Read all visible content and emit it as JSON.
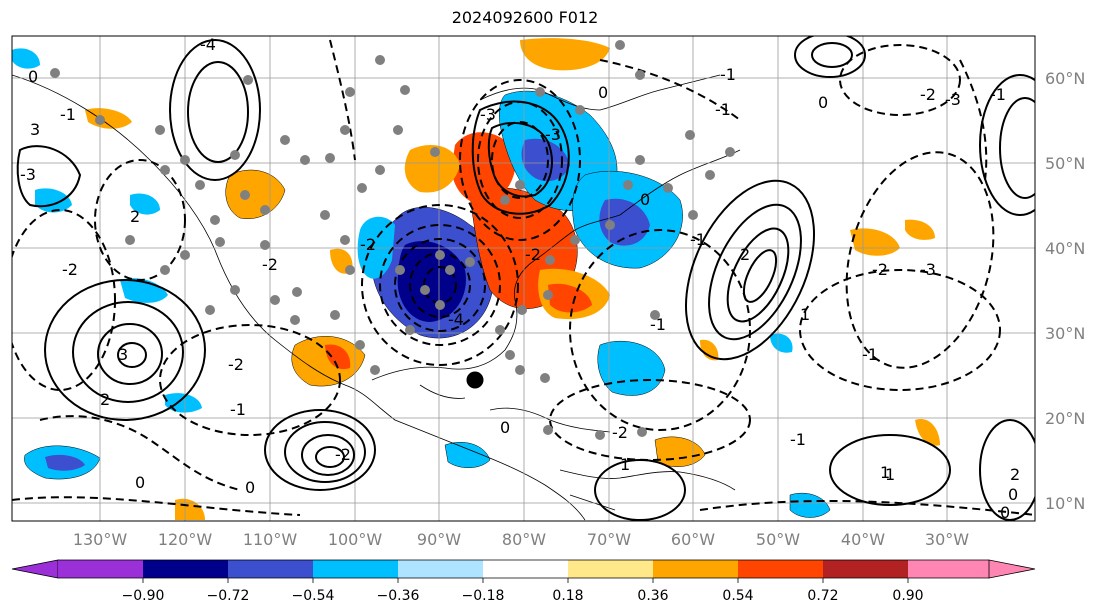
{
  "title": "2024092600 F012",
  "longitude_labels": [
    "130°W",
    "120°W",
    "110°W",
    "100°W",
    "90°W",
    "80°W",
    "70°W",
    "60°W",
    "50°W",
    "40°W",
    "30°W"
  ],
  "latitude_labels": [
    "60°N",
    "50°N",
    "40°N",
    "30°N",
    "20°N",
    "10°N"
  ],
  "colorbar": {
    "tick_labels": [
      "−0.90",
      "−0.72",
      "−0.54",
      "−0.36",
      "−0.18",
      "0.18",
      "0.36",
      "0.54",
      "0.72",
      "0.90"
    ],
    "colors": [
      "#9b30d9",
      "#00008b",
      "#3b4fcf",
      "#00bfff",
      "#aee4ff",
      "#ffffff",
      "#ffe88a",
      "#ffa500",
      "#ff4500",
      "#b22222",
      "#ff85b3"
    ]
  },
  "contour_labels": [
    "0",
    "-2",
    "3",
    "-1",
    "-2",
    "2",
    "0",
    "-4",
    "-3",
    "3",
    "2",
    "-1",
    "-3",
    "0",
    "-2",
    "-1",
    "1",
    "-1",
    "-1",
    "0",
    "-2",
    "-2",
    "-3",
    "-4",
    "0",
    "-2",
    "-3",
    "0",
    "1",
    "1",
    "1",
    "-3",
    "2",
    "0",
    "-1",
    "-1",
    "2",
    "0",
    "-2",
    "-2",
    "-1",
    "-2",
    "0",
    "-1"
  ],
  "marker": "storm-center-dot",
  "station_marker_color": "#808080"
}
